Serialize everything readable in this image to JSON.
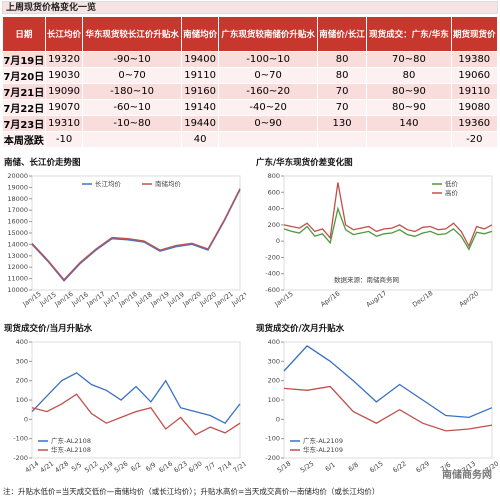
{
  "header": {
    "title": "上周现货价格变化一览"
  },
  "table": {
    "columns": [
      "日期",
      "长江均价",
      "华东现货较长江价升贴水",
      "南储均价",
      "广东现货较南储价升贴水",
      "南储价/长江",
      "现货成交：广东/华东",
      "期货现货价"
    ],
    "rows": [
      [
        "7月19日",
        "19320",
        "-90~10",
        "19400",
        "-100~10",
        "80",
        "70~80",
        "19380"
      ],
      [
        "7月20日",
        "19030",
        "0~70",
        "19110",
        "0~70",
        "80",
        "80",
        "19060"
      ],
      [
        "7月21日",
        "19090",
        "-180~10",
        "19160",
        "-160~20",
        "70",
        "80~90",
        "19110"
      ],
      [
        "7月22日",
        "19070",
        "-60~10",
        "19140",
        "-40~20",
        "70",
        "80~90",
        "19080"
      ],
      [
        "7月23日",
        "19310",
        "-10~80",
        "19440",
        "0~90",
        "130",
        "140",
        "19360"
      ],
      [
        "本周涨跌",
        "-10",
        null,
        "40",
        null,
        null,
        null,
        "-20"
      ]
    ]
  },
  "chart_data": [
    {
      "type": "line",
      "title": "南储、长江价走势图",
      "legend": "top",
      "categories": [
        "Jan/15",
        "Jul/15",
        "Jan/16",
        "Jul/16",
        "Jan/17",
        "Jul/17",
        "Jan/18",
        "Jul/18",
        "Jan/19",
        "Jul/19",
        "Jan/20",
        "Jul/20",
        "Jan/21",
        "Jul/21"
      ],
      "series": [
        {
          "name": "长江均价",
          "color": "#4472c4",
          "values": [
            14000,
            12500,
            10800,
            12300,
            13500,
            14500,
            14400,
            14200,
            13400,
            13800,
            14000,
            13500,
            16000,
            18800
          ]
        },
        {
          "name": "南储均价",
          "color": "#c0504d",
          "values": [
            14100,
            12600,
            10900,
            12400,
            13600,
            14600,
            14500,
            14300,
            13500,
            13900,
            14100,
            13600,
            16100,
            18900
          ]
        }
      ],
      "ylim": [
        10000,
        20000
      ],
      "yticks": [
        10000,
        11000,
        12000,
        13000,
        14000,
        15000,
        16000,
        17000,
        18000,
        19000,
        20000
      ]
    },
    {
      "type": "line",
      "title": "广东/华东现货价差变化图",
      "legend": "upper right",
      "annotation": "数据来源：南储商务网",
      "categories": [
        "Jan/15",
        null,
        null,
        null,
        null,
        null,
        "Apr/16",
        null,
        null,
        null,
        null,
        null,
        "Aug/17",
        null,
        null,
        null,
        null,
        null,
        "Dec/18",
        null,
        null,
        null,
        null,
        null,
        "Apr/20",
        null,
        null,
        null
      ],
      "series": [
        {
          "name": "低价",
          "color": "#4e9a3a",
          "values": [
            150,
            120,
            100,
            180,
            60,
            90,
            -20,
            400,
            140,
            80,
            100,
            120,
            60,
            90,
            100,
            140,
            80,
            60,
            100,
            120,
            80,
            90,
            150,
            60,
            -100,
            110,
            90,
            120
          ]
        },
        {
          "name": "高价",
          "color": "#c0504d",
          "values": [
            200,
            180,
            160,
            220,
            120,
            150,
            40,
            720,
            200,
            140,
            160,
            180,
            120,
            150,
            160,
            200,
            140,
            120,
            170,
            180,
            140,
            150,
            220,
            120,
            -60,
            180,
            150,
            200
          ]
        }
      ],
      "ylim": [
        -600,
        800
      ],
      "yticks": [
        -600,
        -400,
        -200,
        0,
        200,
        400,
        600,
        800
      ]
    },
    {
      "type": "line",
      "title": "现货成交价/当月升贴水",
      "legend": "lower left",
      "categories": [
        "4/14",
        "4/21",
        "4/28",
        "5/5",
        "5/12",
        "5/19",
        "5/26",
        "6/2",
        "6/9",
        "6/16",
        "6/23",
        "6/30",
        "7/7",
        "7/14",
        "7/21"
      ],
      "series": [
        {
          "name": "广东-AL2108",
          "color": "#3a70c4",
          "values": [
            40,
            120,
            200,
            240,
            180,
            150,
            100,
            170,
            90,
            200,
            60,
            40,
            20,
            -20,
            80
          ]
        },
        {
          "name": "华东-AL2108",
          "color": "#c0504d",
          "values": [
            60,
            40,
            80,
            130,
            30,
            -20,
            10,
            40,
            60,
            -50,
            10,
            -80,
            -40,
            -70,
            -20
          ]
        }
      ],
      "ylim": [
        -200,
        400
      ],
      "yticks": [
        -200,
        -100,
        0,
        100,
        200,
        300,
        400
      ]
    },
    {
      "type": "line",
      "title": "现货成交价/次月升贴水",
      "legend": "lower left",
      "categories": [
        "5/18",
        "5/25",
        "6/1",
        "6/8",
        "6/15",
        "6/22",
        "6/29",
        "7/6",
        "7/13",
        "7/20"
      ],
      "series": [
        {
          "name": "广东-AL2109",
          "color": "#3a70c4",
          "values": [
            250,
            380,
            300,
            200,
            90,
            180,
            100,
            20,
            10,
            60
          ]
        },
        {
          "name": "华东-AL2109",
          "color": "#c0504d",
          "values": [
            160,
            150,
            170,
            40,
            -20,
            50,
            -20,
            -60,
            -50,
            -30
          ]
        }
      ],
      "ylim": [
        -200,
        400
      ],
      "yticks": [
        -200,
        -100,
        0,
        100,
        200,
        300,
        400
      ]
    }
  ],
  "footer": {
    "note": "注：升贴水低价=当天成交低价—南储均价（或长江均价）；升贴水高价=当天成交高价—南储均价（或长江均价）",
    "watermark": "南储商务网"
  }
}
